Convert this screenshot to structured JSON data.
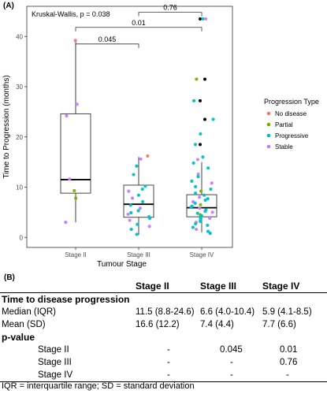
{
  "panel_a_label": "(A)",
  "panel_b_label": "(B)",
  "chart_data": {
    "type": "box-jitter",
    "xlabel": "Tumour Stage",
    "ylabel": "Time to Progression (months)",
    "categories": [
      "Stage II",
      "Stage III",
      "Stage IV"
    ],
    "ylim": [
      -2,
      46
    ],
    "yticks": [
      0,
      10,
      20,
      30,
      40
    ],
    "grid": false,
    "annotation": "Kruskal-Wallis, p = 0.038",
    "comparisons": [
      {
        "from": "Stage II",
        "to": "Stage III",
        "label": "0.045"
      },
      {
        "from": "Stage II",
        "to": "Stage IV",
        "label": "0.01"
      },
      {
        "from": "Stage III",
        "to": "Stage IV",
        "label": "0.76"
      }
    ],
    "boxes": [
      {
        "category": "Stage II",
        "whisker_low": 3,
        "q1": 8.8,
        "median": 11.5,
        "q3": 24.6,
        "whisker_high": 39
      },
      {
        "category": "Stage III",
        "whisker_low": 0.5,
        "q1": 4.0,
        "median": 6.6,
        "q3": 10.4,
        "whisker_high": 16
      },
      {
        "category": "Stage IV",
        "whisker_low": 1,
        "q1": 4.1,
        "median": 5.9,
        "q3": 8.5,
        "whisker_high": 15
      }
    ],
    "legend": {
      "title": "Progression Type",
      "position": "right",
      "entries": [
        {
          "name": "No disease",
          "color": "#F8766D"
        },
        {
          "name": "Partial",
          "color": "#7CAE00"
        },
        {
          "name": "Progressive",
          "color": "#00BFC4"
        },
        {
          "name": "Stable",
          "color": "#C77CFF"
        }
      ]
    },
    "outlier_color": "#000000",
    "points": [
      {
        "stage": "Stage II",
        "y": 39.2,
        "type": "No disease"
      },
      {
        "stage": "Stage II",
        "y": 26.5,
        "type": "Stable"
      },
      {
        "stage": "Stage II",
        "y": 24.2,
        "type": "Stable"
      },
      {
        "stage": "Stage II",
        "y": 11.6,
        "type": "Stable"
      },
      {
        "stage": "Stage II",
        "y": 9.3,
        "type": "Partial"
      },
      {
        "stage": "Stage II",
        "y": 7.8,
        "type": "Partial"
      },
      {
        "stage": "Stage II",
        "y": 3.0,
        "type": "Stable"
      },
      {
        "stage": "Stage III",
        "y": 16.2,
        "type": "No disease"
      },
      {
        "stage": "Stage III",
        "y": 15.6,
        "type": "Stable"
      },
      {
        "stage": "Stage III",
        "y": 14.2,
        "type": "Progressive"
      },
      {
        "stage": "Stage III",
        "y": 12.5,
        "type": "Progressive"
      },
      {
        "stage": "Stage III",
        "y": 10.2,
        "type": "Progressive"
      },
      {
        "stage": "Stage III",
        "y": 9.6,
        "type": "Progressive"
      },
      {
        "stage": "Stage III",
        "y": 9.2,
        "type": "Stable"
      },
      {
        "stage": "Stage III",
        "y": 8.4,
        "type": "Progressive"
      },
      {
        "stage": "Stage III",
        "y": 7.8,
        "type": "Stable"
      },
      {
        "stage": "Stage III",
        "y": 7.1,
        "type": "Progressive"
      },
      {
        "stage": "Stage III",
        "y": 6.4,
        "type": "Progressive"
      },
      {
        "stage": "Stage III",
        "y": 5.8,
        "type": "Stable"
      },
      {
        "stage": "Stage III",
        "y": 5.3,
        "type": "Progressive"
      },
      {
        "stage": "Stage III",
        "y": 4.9,
        "type": "Progressive"
      },
      {
        "stage": "Stage III",
        "y": 4.6,
        "type": "Stable"
      },
      {
        "stage": "Stage III",
        "y": 4.1,
        "type": "Progressive"
      },
      {
        "stage": "Stage III",
        "y": 3.8,
        "type": "Progressive"
      },
      {
        "stage": "Stage III",
        "y": 3.4,
        "type": "Stable"
      },
      {
        "stage": "Stage III",
        "y": 2.6,
        "type": "Progressive"
      },
      {
        "stage": "Stage III",
        "y": 2.2,
        "type": "Stable"
      },
      {
        "stage": "Stage III",
        "y": 1.6,
        "type": "Progressive"
      },
      {
        "stage": "Stage III",
        "y": 0.6,
        "type": "Progressive"
      },
      {
        "stage": "Stage IV",
        "y": 43.5,
        "type": "Progressive"
      },
      {
        "stage": "Stage IV",
        "y": 43.5,
        "type": "Stable"
      },
      {
        "stage": "Stage IV",
        "y": 31.5,
        "type": "Partial"
      },
      {
        "stage": "Stage IV",
        "y": 27.2,
        "type": "Progressive"
      },
      {
        "stage": "Stage IV",
        "y": 23.5,
        "type": "Progressive"
      },
      {
        "stage": "Stage IV",
        "y": 20.6,
        "type": "Progressive"
      },
      {
        "stage": "Stage IV",
        "y": 18.5,
        "type": "Progressive"
      },
      {
        "stage": "Stage IV",
        "y": 16.0,
        "type": "Progressive"
      },
      {
        "stage": "Stage IV",
        "y": 15.5,
        "type": "Stable"
      },
      {
        "stage": "Stage IV",
        "y": 14.8,
        "type": "Progressive"
      },
      {
        "stage": "Stage IV",
        "y": 13.8,
        "type": "Progressive"
      },
      {
        "stage": "Stage IV",
        "y": 12.6,
        "type": "Stable"
      },
      {
        "stage": "Stage IV",
        "y": 12.1,
        "type": "Progressive"
      },
      {
        "stage": "Stage IV",
        "y": 11.2,
        "type": "Progressive"
      },
      {
        "stage": "Stage IV",
        "y": 10.8,
        "type": "Stable"
      },
      {
        "stage": "Stage IV",
        "y": 10.1,
        "type": "Progressive"
      },
      {
        "stage": "Stage IV",
        "y": 9.6,
        "type": "Progressive"
      },
      {
        "stage": "Stage IV",
        "y": 9.2,
        "type": "Partial"
      },
      {
        "stage": "Stage IV",
        "y": 8.8,
        "type": "Progressive"
      },
      {
        "stage": "Stage IV",
        "y": 8.4,
        "type": "Progressive"
      },
      {
        "stage": "Stage IV",
        "y": 8.0,
        "type": "Stable"
      },
      {
        "stage": "Stage IV",
        "y": 7.7,
        "type": "Progressive"
      },
      {
        "stage": "Stage IV",
        "y": 7.4,
        "type": "Progressive"
      },
      {
        "stage": "Stage IV",
        "y": 7.1,
        "type": "Stable"
      },
      {
        "stage": "Stage IV",
        "y": 6.8,
        "type": "Progressive"
      },
      {
        "stage": "Stage IV",
        "y": 6.5,
        "type": "Partial"
      },
      {
        "stage": "Stage IV",
        "y": 6.2,
        "type": "Progressive"
      },
      {
        "stage": "Stage IV",
        "y": 6.0,
        "type": "Progressive"
      },
      {
        "stage": "Stage IV",
        "y": 5.8,
        "type": "Stable"
      },
      {
        "stage": "Stage IV",
        "y": 5.5,
        "type": "Progressive"
      },
      {
        "stage": "Stage IV",
        "y": 5.2,
        "type": "Progressive"
      },
      {
        "stage": "Stage IV",
        "y": 5.0,
        "type": "Stable"
      },
      {
        "stage": "Stage IV",
        "y": 4.8,
        "type": "Progressive"
      },
      {
        "stage": "Stage IV",
        "y": 4.5,
        "type": "Partial"
      },
      {
        "stage": "Stage IV",
        "y": 4.3,
        "type": "Progressive"
      },
      {
        "stage": "Stage IV",
        "y": 4.0,
        "type": "Progressive"
      },
      {
        "stage": "Stage IV",
        "y": 3.8,
        "type": "Stable"
      },
      {
        "stage": "Stage IV",
        "y": 3.5,
        "type": "Progressive"
      },
      {
        "stage": "Stage IV",
        "y": 3.2,
        "type": "Progressive"
      },
      {
        "stage": "Stage IV",
        "y": 3.0,
        "type": "Stable"
      },
      {
        "stage": "Stage IV",
        "y": 2.7,
        "type": "Progressive"
      },
      {
        "stage": "Stage IV",
        "y": 2.4,
        "type": "Progressive"
      },
      {
        "stage": "Stage IV",
        "y": 2.0,
        "type": "Progressive"
      },
      {
        "stage": "Stage IV",
        "y": 1.6,
        "type": "Stable"
      },
      {
        "stage": "Stage IV",
        "y": 1.2,
        "type": "Progressive"
      },
      {
        "stage": "Stage IV",
        "y": 0.8,
        "type": "Progressive"
      }
    ],
    "outliers": [
      {
        "stage": "Stage IV",
        "y": 43.5
      },
      {
        "stage": "Stage IV",
        "y": 31.5
      },
      {
        "stage": "Stage IV",
        "y": 27.2
      },
      {
        "stage": "Stage IV",
        "y": 23.5
      },
      {
        "stage": "Stage IV",
        "y": 18.5
      }
    ]
  },
  "table": {
    "headers": [
      "",
      "Stage II",
      "Stage III",
      "Stage IV"
    ],
    "section1": "Time to disease progression",
    "rows1": [
      [
        "Median (IQR)",
        "11.5 (8.8-24.6)",
        "6.6 (4.0-10.4)",
        "5.9 (4.1-8.5)"
      ],
      [
        "Mean (SD)",
        "16.6 (12.2)",
        "7.4 (4.4)",
        "7.7 (6.6)"
      ]
    ],
    "section2": "p-value",
    "rows2": [
      [
        "Stage II",
        "-",
        "0.045",
        "0.01"
      ],
      [
        "Stage III",
        "-",
        "-",
        "0.76"
      ],
      [
        "Stage IV",
        "-",
        "-",
        "-"
      ]
    ],
    "footnote": "IQR = interquartile range; SD = standard deviation"
  }
}
